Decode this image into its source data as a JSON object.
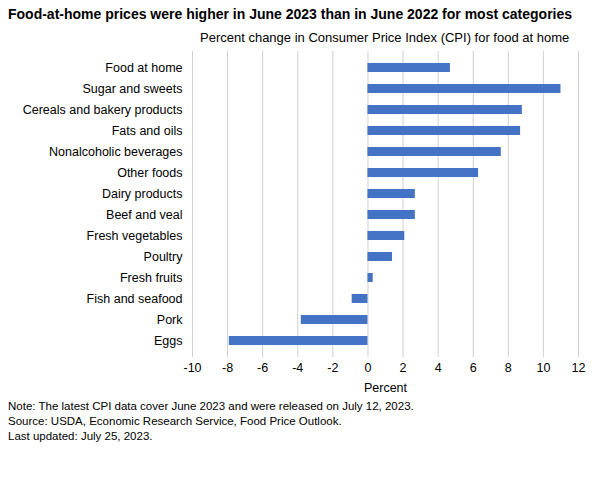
{
  "chart_data": {
    "type": "bar",
    "orientation": "horizontal",
    "title": "Food-at-home prices were higher in June 2023 than in June 2022 for most categories",
    "subtitle": "Percent change in Consumer Price Index (CPI) for food at home",
    "x_label": "Percent",
    "categories": [
      "Food at home",
      "Sugar and sweets",
      "Cereals and bakery products",
      "Fats and oils",
      "Nonalcoholic beverages",
      "Other foods",
      "Dairy products",
      "Beef and veal",
      "Fresh vegetables",
      "Poultry",
      "Fresh fruits",
      "Fish and seafood",
      "Pork",
      "Eggs"
    ],
    "values": [
      4.7,
      11.0,
      8.8,
      8.7,
      7.6,
      6.3,
      2.7,
      2.7,
      2.1,
      1.4,
      0.3,
      -0.9,
      -3.8,
      -7.9
    ],
    "color": "#4472c4",
    "xlim": [
      -10,
      12
    ],
    "xticks": [
      -10,
      -8,
      -6,
      -4,
      -2,
      0,
      2,
      4,
      6,
      8,
      10,
      12
    ],
    "grid": true,
    "caption": [
      "Note: The latest CPI data cover June 2023 and were released on July 12, 2023.",
      "Source: USDA, Economic Research Service, Food Price Outlook.",
      "Last updated: July 25, 2023."
    ]
  }
}
